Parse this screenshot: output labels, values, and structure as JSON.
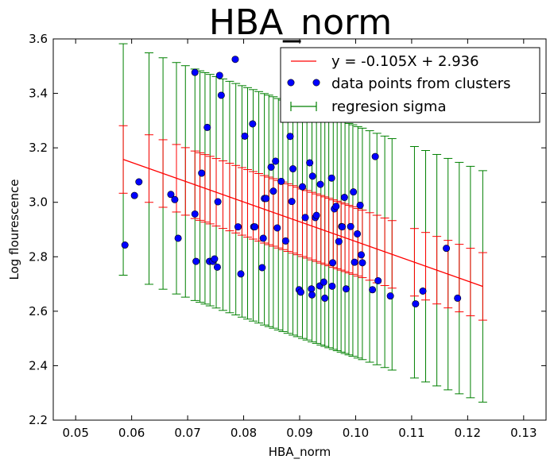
{
  "chart_data": {
    "type": "scatter",
    "title": "HBA_norm",
    "xlabel": "HBA_norm",
    "ylabel": "Log flourescence",
    "xlim": [
      0.046,
      0.134
    ],
    "ylim": [
      2.2,
      3.6
    ],
    "xticks": [
      "0.05",
      "0.06",
      "0.07",
      "0.08",
      "0.09",
      "0.10",
      "0.11",
      "0.12",
      "0.13"
    ],
    "xtick_values": [
      0.05,
      0.06,
      0.07,
      0.08,
      0.09,
      0.1,
      0.11,
      0.12,
      0.13
    ],
    "yticks": [
      "2.2",
      "2.4",
      "2.6",
      "2.8",
      "3.0",
      "3.2",
      "3.4",
      "3.6"
    ],
    "ytick_values": [
      2.2,
      2.4,
      2.6,
      2.8,
      3.0,
      3.2,
      3.4,
      3.6
    ],
    "grid": false,
    "legend": {
      "placement": "top-right",
      "entries": [
        {
          "label": "y = -0.105X + 2.936",
          "kind": "line",
          "color": "#ff0000"
        },
        {
          "label": "data points from clusters",
          "kind": "marker",
          "color": "#0000ff"
        },
        {
          "label": "regresion sigma",
          "kind": "errorbar",
          "color": "#008000"
        }
      ]
    },
    "regression": {
      "slope": -7.26,
      "intercept": 3.582,
      "x_range": [
        0.0585,
        0.1227
      ]
    },
    "sigma_red": 0.124,
    "sigma_green": 0.425,
    "colors": {
      "regression": "#ff0000",
      "points": "#0000ff",
      "sigma": "#008000"
    },
    "points": {
      "x": [
        0.0588,
        0.0605,
        0.0613,
        0.067,
        0.0677,
        0.0683,
        0.0713,
        0.0713,
        0.0715,
        0.0725,
        0.0735,
        0.0739,
        0.0745,
        0.0748,
        0.0753,
        0.0754,
        0.0757,
        0.076,
        0.0785,
        0.079,
        0.0795,
        0.0802,
        0.0816,
        0.0818,
        0.082,
        0.0833,
        0.0835,
        0.0837,
        0.084,
        0.0849,
        0.0853,
        0.0857,
        0.086,
        0.0867,
        0.0875,
        0.0883,
        0.0886,
        0.0888,
        0.0899,
        0.0902,
        0.0905,
        0.091,
        0.0918,
        0.0921,
        0.0922,
        0.0923,
        0.0928,
        0.093,
        0.0936,
        0.0937,
        0.0943,
        0.0945,
        0.0957,
        0.0958,
        0.0959,
        0.0962,
        0.0965,
        0.097,
        0.0975,
        0.0976,
        0.098,
        0.0983,
        0.0991,
        0.0996,
        0.0998,
        0.1003,
        0.1008,
        0.101,
        0.1012,
        0.103,
        0.1035,
        0.104,
        0.1062,
        0.1107,
        0.112,
        0.1162,
        0.1182
      ],
      "y": [
        2.843,
        3.025,
        3.075,
        3.029,
        3.01,
        2.868,
        3.477,
        2.957,
        2.783,
        3.107,
        3.275,
        2.783,
        2.783,
        2.792,
        2.762,
        3.002,
        3.466,
        3.393,
        3.525,
        2.91,
        2.737,
        3.243,
        3.288,
        2.91,
        2.91,
        2.76,
        2.868,
        3.014,
        3.014,
        3.129,
        3.041,
        3.151,
        2.906,
        3.077,
        2.858,
        3.242,
        3.003,
        3.123,
        2.679,
        2.67,
        3.057,
        2.944,
        3.145,
        2.682,
        2.66,
        3.096,
        2.944,
        2.952,
        2.693,
        3.066,
        2.707,
        2.648,
        3.089,
        2.692,
        2.778,
        2.976,
        2.985,
        2.856,
        2.911,
        2.91,
        3.018,
        2.682,
        2.911,
        3.038,
        2.78,
        2.884,
        2.989,
        2.807,
        2.778,
        2.679,
        3.168,
        2.712,
        2.656,
        2.627,
        2.674,
        2.831,
        2.648
      ]
    },
    "sigma_x": [
      0.0585,
      0.0631,
      0.0656,
      0.068,
      0.0696,
      0.0713,
      0.0722,
      0.0731,
      0.074,
      0.0751,
      0.0763,
      0.0775,
      0.0786,
      0.0797,
      0.0807,
      0.0817,
      0.0827,
      0.0837,
      0.0845,
      0.0853,
      0.0862,
      0.087,
      0.0879,
      0.0888,
      0.0896,
      0.0905,
      0.0913,
      0.0922,
      0.093,
      0.0938,
      0.0945,
      0.0952,
      0.096,
      0.0967,
      0.0974,
      0.0981,
      0.0988,
      0.0995,
      0.1004,
      0.1012,
      0.1025,
      0.1038,
      0.1052,
      0.1065,
      0.1105,
      0.1125,
      0.1145,
      0.1165,
      0.1185,
      0.1205,
      0.1227
    ]
  }
}
